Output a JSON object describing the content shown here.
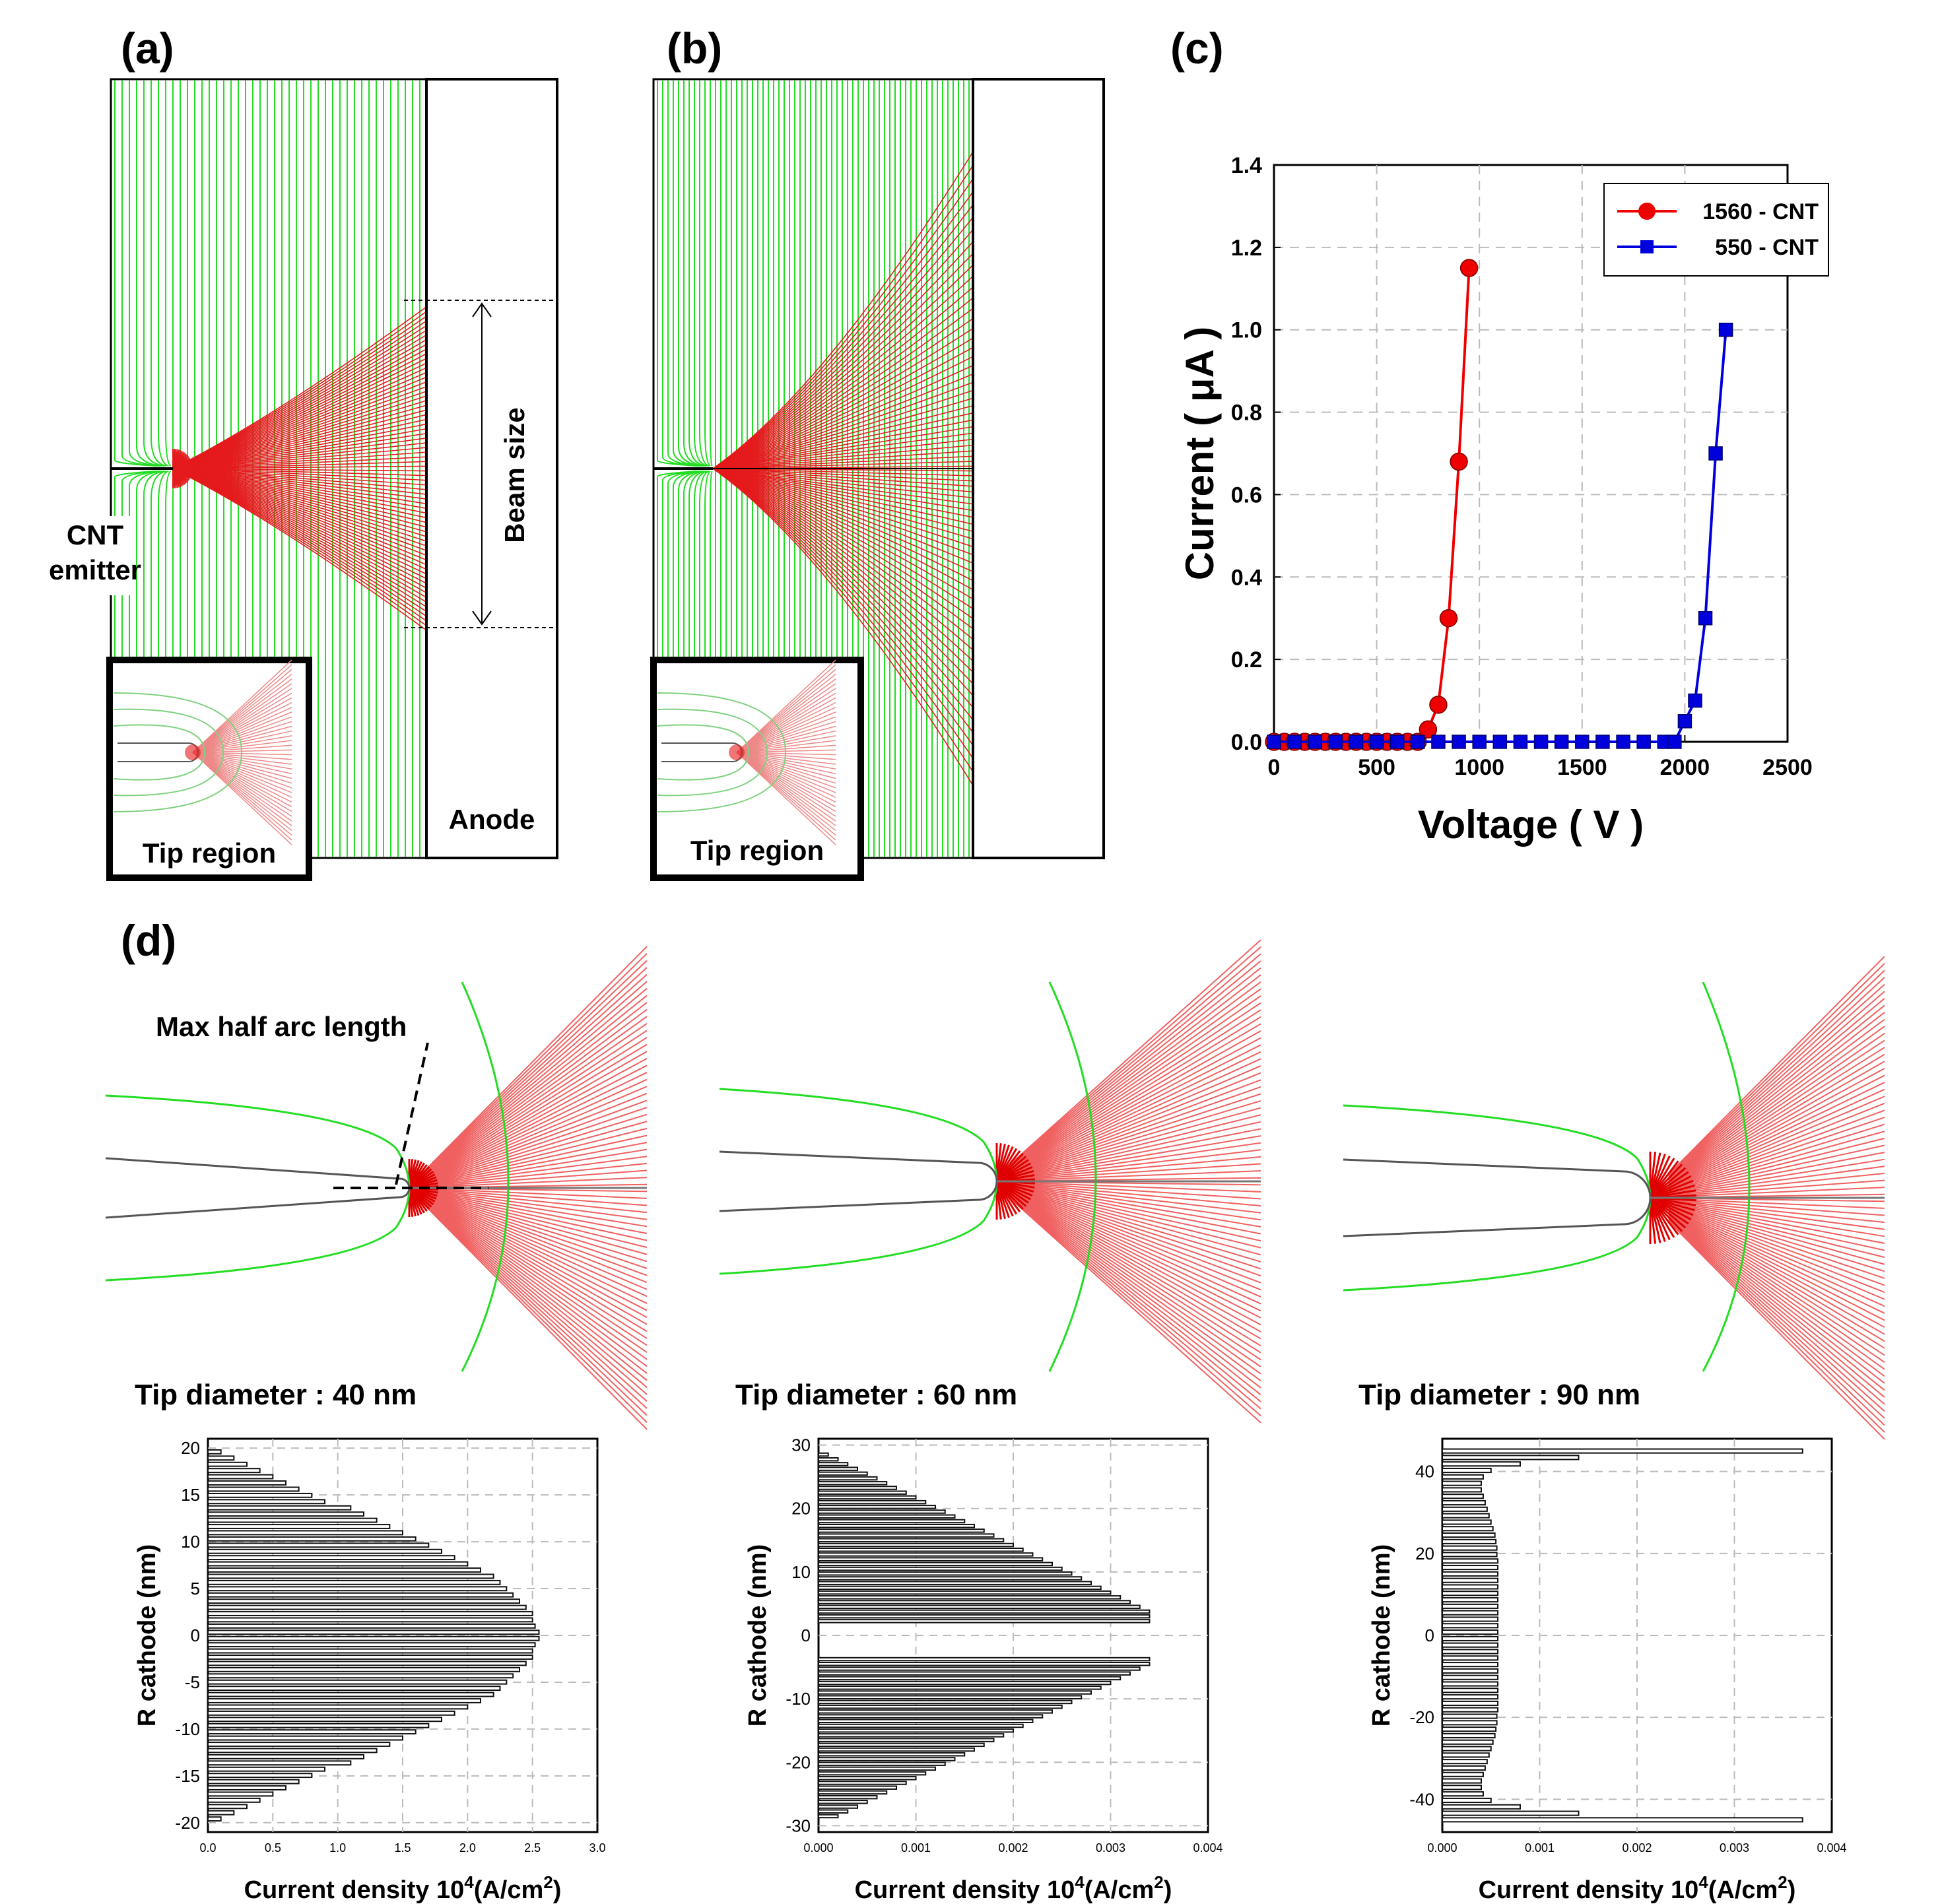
{
  "panel_labels": {
    "a": "(a)",
    "b": "(b)",
    "c": "(c)",
    "d": "(d)"
  },
  "panel_a": {
    "cnt_line1": "CNT",
    "cnt_line2": "emitter",
    "beam_size": "Beam size",
    "anode": "Anode",
    "tip_region": "Tip region"
  },
  "panel_b": {
    "tip_region": "Tip region"
  },
  "panel_d": {
    "max_half_arc": "Max half arc length"
  },
  "colors": {
    "field": "#22dd22",
    "beam": "#e41a1c",
    "series_red": "#ee0000",
    "series_blue": "#0000dd",
    "grid": "#bbbbbb",
    "bar": "#111111"
  },
  "chart_data": [
    {
      "id": "c",
      "type": "line",
      "title": "",
      "xlabel": "Voltage ( V )",
      "ylabel": "Current ( μA )",
      "xlim": [
        0,
        2500
      ],
      "ylim": [
        0,
        1.4
      ],
      "xticks": [
        0,
        500,
        1000,
        1500,
        2000,
        2500
      ],
      "yticks": [
        0.0,
        0.2,
        0.4,
        0.6,
        0.8,
        1.0,
        1.2,
        1.4
      ],
      "xtick_labels": [
        "0",
        "500",
        "1000",
        "1500",
        "2000",
        "2500"
      ],
      "ytick_labels": [
        "0.0",
        "0.2",
        "0.4",
        "0.6",
        "0.8",
        "1.0",
        "1.2",
        "1.4"
      ],
      "grid": true,
      "legend_position": "top-right",
      "series": [
        {
          "name": "1560 - CNT",
          "marker": "circle",
          "color": "#ee0000",
          "x": [
            0,
            50,
            100,
            150,
            200,
            250,
            300,
            350,
            400,
            450,
            500,
            550,
            600,
            650,
            700,
            750,
            800,
            850,
            900,
            950
          ],
          "y": [
            0,
            0,
            0,
            0,
            0,
            0,
            0,
            0,
            0,
            0,
            0,
            0,
            0,
            0,
            0,
            0.03,
            0.09,
            0.3,
            0.68,
            1.15
          ]
        },
        {
          "name": "550 - CNT",
          "marker": "square",
          "color": "#0000dd",
          "x": [
            0,
            100,
            200,
            300,
            400,
            500,
            600,
            700,
            800,
            900,
            1000,
            1100,
            1200,
            1300,
            1400,
            1500,
            1600,
            1700,
            1800,
            1900,
            1950,
            2000,
            2050,
            2100,
            2150,
            2200
          ],
          "y": [
            0,
            0,
            0,
            0,
            0,
            0,
            0,
            0,
            0,
            0,
            0,
            0,
            0,
            0,
            0,
            0,
            0,
            0,
            0,
            0,
            0,
            0.05,
            0.1,
            0.3,
            0.7,
            1.0
          ]
        }
      ]
    },
    {
      "id": "d1",
      "type": "bar",
      "orientation": "horizontal",
      "title": "Tip diameter :  40 nm",
      "xlabel": "Current density 10",
      "xlabel_sup": "4",
      "xlabel_rest": "(A/cm",
      "xlabel_sup2": "2",
      "xlabel_end": ")",
      "ylabel": "R cathode (nm)",
      "xlim": [
        0,
        3.0
      ],
      "ylim": [
        -21,
        21
      ],
      "xticks": [
        0.0,
        0.5,
        1.0,
        1.5,
        2.0,
        2.5,
        3.0
      ],
      "xtick_labels": [
        "0.0",
        "0.5",
        "1.0",
        "1.5",
        "2.0",
        "2.5",
        "3.0"
      ],
      "yticks": [
        -20,
        -15,
        -10,
        -5,
        0,
        5,
        10,
        15,
        20
      ],
      "ytick_labels": [
        "-20",
        "-15",
        "-10",
        "-5",
        "0",
        "5",
        "10",
        "15",
        "20"
      ],
      "grid": true,
      "values": [
        0.1,
        0.2,
        0.3,
        0.4,
        0.5,
        0.6,
        0.7,
        0.8,
        0.9,
        1.1,
        1.2,
        1.3,
        1.4,
        1.5,
        1.6,
        1.7,
        1.8,
        1.9,
        2.0,
        2.1,
        2.2,
        2.25,
        2.3,
        2.35,
        2.4,
        2.45,
        2.5,
        2.5,
        2.52,
        2.55,
        2.55,
        2.52,
        2.5,
        2.5,
        2.45,
        2.4,
        2.35,
        2.3,
        2.25,
        2.2,
        2.1,
        2.0,
        1.9,
        1.8,
        1.7,
        1.6,
        1.5,
        1.4,
        1.3,
        1.2,
        1.1,
        0.9,
        0.8,
        0.7,
        0.6,
        0.5,
        0.4,
        0.3,
        0.2,
        0.1
      ],
      "r_range": [
        -19.6,
        19.6
      ]
    },
    {
      "id": "d2",
      "type": "bar",
      "orientation": "horizontal",
      "title": "Tip diameter :  60 nm",
      "xlabel": "Current density 10",
      "xlabel_sup": "4",
      "xlabel_rest": "(A/cm",
      "xlabel_sup2": "2",
      "xlabel_end": ")",
      "ylabel": "R cathode (nm)",
      "xlim": [
        0,
        0.004
      ],
      "ylim": [
        -31,
        31
      ],
      "xticks": [
        0.0,
        0.001,
        0.002,
        0.003,
        0.004
      ],
      "xtick_labels": [
        "0.000",
        "0.001",
        "0.002",
        "0.003",
        "0.004"
      ],
      "yticks": [
        -30,
        -20,
        -10,
        0,
        10,
        20,
        30
      ],
      "ytick_labels": [
        "-30",
        "-20",
        "-10",
        "0",
        "10",
        "20",
        "30"
      ],
      "grid": true,
      "values": [
        0.0001,
        0.0002,
        0.0003,
        0.0004,
        0.0005,
        0.0006,
        0.0007,
        0.0008,
        0.0009,
        0.001,
        0.0011,
        0.0012,
        0.0013,
        0.0014,
        0.0015,
        0.0016,
        0.0017,
        0.0018,
        0.0019,
        0.002,
        0.0021,
        0.0022,
        0.0023,
        0.0024,
        0.0025,
        0.0026,
        0.0027,
        0.0028,
        0.0029,
        0.003,
        0.0031,
        0.0032,
        0.0033,
        0.0034,
        0.0034,
        0.0034,
        0,
        0,
        0,
        0,
        0,
        0,
        0,
        0.0034,
        0.0034,
        0.0033,
        0.0032,
        0.0031,
        0.003,
        0.0029,
        0.0028,
        0.0027,
        0.0026,
        0.0025,
        0.0024,
        0.0023,
        0.0022,
        0.0021,
        0.002,
        0.0019,
        0.0018,
        0.0017,
        0.0016,
        0.0015,
        0.0014,
        0.0013,
        0.0012,
        0.0011,
        0.001,
        0.0009,
        0.0008,
        0.0007,
        0.0006,
        0.0005,
        0.0004,
        0.0003,
        0.0002
      ],
      "r_range": [
        -28.5,
        28.5
      ]
    },
    {
      "id": "d3",
      "type": "bar",
      "orientation": "horizontal",
      "title": "Tip diameter :  90 nm",
      "xlabel": "Current density 10",
      "xlabel_sup": "4",
      "xlabel_rest": "(A/cm",
      "xlabel_sup2": "2",
      "xlabel_end": ")",
      "ylabel": "R cathode (nm)",
      "xlim": [
        0,
        0.004
      ],
      "ylim": [
        -48,
        48
      ],
      "xticks": [
        0.0,
        0.001,
        0.002,
        0.003,
        0.004
      ],
      "xtick_labels": [
        "0.000",
        "0.001",
        "0.002",
        "0.003",
        "0.004"
      ],
      "yticks": [
        -40,
        -20,
        0,
        20,
        40
      ],
      "ytick_labels": [
        "-40",
        "-20",
        "0",
        "20",
        "40"
      ],
      "grid": true,
      "values": [
        0.0037,
        0.0014,
        0.0008,
        0.0005,
        0.00042,
        0.0004,
        0.0004,
        0.00042,
        0.00044,
        0.00046,
        0.00048,
        0.0005,
        0.00052,
        0.00054,
        0.00055,
        0.00056,
        0.00056,
        0.00057,
        0.00057,
        0.00057,
        0.00057,
        0.00057,
        0.00057,
        0.00057,
        0.00057,
        0.00057,
        0.00057,
        0.00057,
        0.00057,
        0.00057,
        0.00057,
        0.00057,
        0.00057,
        0.00057,
        0.00057,
        0.00057,
        0.00057,
        0.00057,
        0.00057,
        0.00057,
        0.00057,
        0.00056,
        0.00056,
        0.00055,
        0.00054,
        0.00052,
        0.0005,
        0.00048,
        0.00046,
        0.00044,
        0.00042,
        0.0004,
        0.0004,
        0.00042,
        0.0005,
        0.0008,
        0.0014,
        0.0037
      ],
      "r_range": [
        -45,
        45
      ]
    }
  ]
}
